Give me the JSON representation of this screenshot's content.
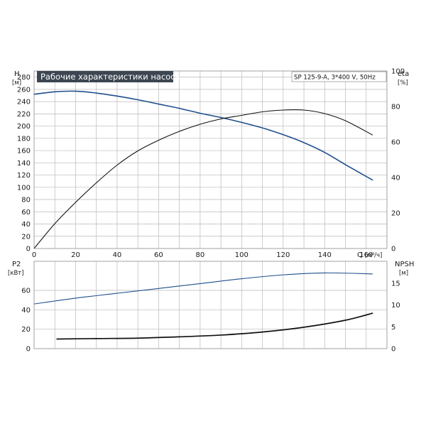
{
  "chart_data": [
    {
      "type": "line",
      "title": "Рабочие характеристики насоса",
      "subtitle": "SP 125-9-A, 3*400 V, 50Hz",
      "xlabel": "Q",
      "xunit": "[м³/ч]",
      "xticks": [
        "0",
        "20",
        "40",
        "60",
        "80",
        "100",
        "120",
        "140",
        "160"
      ],
      "xlim": [
        0,
        170
      ],
      "left_axis": {
        "label": "H",
        "unit": "[м]",
        "ylim": [
          0,
          290
        ],
        "ticks": [
          "0",
          "20",
          "40",
          "60",
          "80",
          "100",
          "120",
          "140",
          "160",
          "180",
          "200",
          "220",
          "240",
          "260",
          "280"
        ]
      },
      "right_axis": {
        "label": "eta",
        "unit": "[%]",
        "ylim": [
          0,
          100
        ],
        "ticks": [
          "0",
          "20",
          "40",
          "60",
          "80",
          "100"
        ]
      },
      "series": [
        {
          "axis": "left",
          "color": "#1f4e8c",
          "x": [
            0,
            10,
            20,
            30,
            40,
            50,
            60,
            70,
            80,
            90,
            100,
            110,
            120,
            130,
            140,
            150,
            163
          ],
          "y": [
            252,
            256,
            257,
            254,
            249,
            243,
            236,
            229,
            221,
            214,
            206,
            197,
            186,
            173,
            157,
            137,
            112
          ]
        },
        {
          "axis": "right",
          "color": "#111111",
          "x": [
            0,
            10,
            20,
            30,
            40,
            50,
            60,
            70,
            80,
            90,
            100,
            110,
            120,
            130,
            140,
            150,
            163
          ],
          "y": [
            0,
            14,
            26,
            37,
            47,
            55,
            61,
            66,
            70,
            73,
            75,
            77,
            78,
            78,
            76,
            72,
            64
          ]
        }
      ]
    },
    {
      "type": "line",
      "xlim": [
        0,
        170
      ],
      "left_axis": {
        "label": "P2",
        "unit": "[кВт]",
        "ylim": [
          0,
          90
        ],
        "ticks": [
          "0",
          "20",
          "40",
          "60"
        ]
      },
      "right_axis": {
        "label": "NPSH",
        "unit": "[м]",
        "ylim": [
          0,
          20
        ],
        "ticks": [
          "0",
          "5",
          "10",
          "15"
        ]
      },
      "series": [
        {
          "axis": "left",
          "color": "#1f4e8c",
          "x": [
            0,
            20,
            40,
            60,
            80,
            100,
            120,
            140,
            163
          ],
          "y": [
            46,
            52,
            57,
            62,
            67,
            72,
            76,
            78,
            77
          ]
        },
        {
          "axis": "right",
          "color": "#111111",
          "x": [
            11,
            30,
            50,
            70,
            90,
            110,
            130,
            150,
            163
          ],
          "y": [
            2.2,
            2.3,
            2.4,
            2.7,
            3.1,
            3.8,
            4.9,
            6.5,
            8.1
          ]
        }
      ]
    }
  ]
}
